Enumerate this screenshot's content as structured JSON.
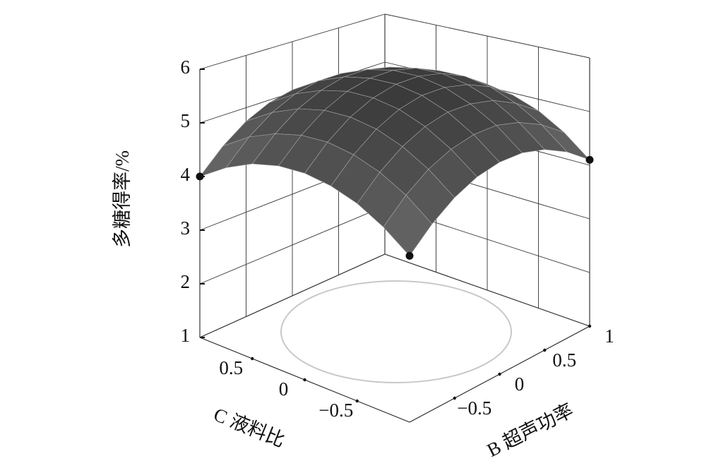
{
  "chart_data": {
    "type": "surface",
    "zlabel": "多糖得率/%",
    "xlabel": "C 液料比",
    "ylabel": "B 超声功率",
    "x": [
      -1,
      -0.75,
      -0.5,
      -0.25,
      0,
      0.25,
      0.5,
      0.75,
      1
    ],
    "y": [
      -1,
      -0.75,
      -0.5,
      -0.25,
      0,
      0.25,
      0.5,
      0.75,
      1
    ],
    "z": [
      [
        4.1,
        4.44,
        4.68,
        4.81,
        4.85,
        4.79,
        4.63,
        4.36,
        4.0
      ],
      [
        4.47,
        4.82,
        5.06,
        5.2,
        5.25,
        5.19,
        5.03,
        4.78,
        4.42
      ],
      [
        4.74,
        5.09,
        5.34,
        5.49,
        5.54,
        5.49,
        5.34,
        5.09,
        4.74
      ],
      [
        4.9,
        5.25,
        5.51,
        5.67,
        5.72,
        5.68,
        5.53,
        5.29,
        4.95
      ],
      [
        4.95,
        5.31,
        5.58,
        5.74,
        5.8,
        5.76,
        5.63,
        5.39,
        5.05
      ],
      [
        4.9,
        5.27,
        5.53,
        5.7,
        5.77,
        5.74,
        5.61,
        5.38,
        5.05
      ],
      [
        4.74,
        5.11,
        5.39,
        5.56,
        5.64,
        5.61,
        5.49,
        5.26,
        4.94
      ],
      [
        4.47,
        4.85,
        5.13,
        5.32,
        5.4,
        5.38,
        5.26,
        5.04,
        4.72
      ],
      [
        4.1,
        4.49,
        4.78,
        4.96,
        5.05,
        5.04,
        4.93,
        4.71,
        4.4
      ]
    ],
    "xlim": [
      -1,
      1
    ],
    "xticks": [
      {
        "value": -0.5,
        "label": "−0.5"
      },
      0,
      0.5
    ],
    "ylim": [
      -1,
      1
    ],
    "yticks": [
      {
        "value": -0.5,
        "label": "−0.5"
      },
      0,
      0.5,
      1
    ],
    "zlim": [
      1,
      6
    ],
    "zticks": [
      1,
      2,
      3,
      4,
      5,
      6
    ],
    "color": "#3a3a3a",
    "grid": true
  }
}
